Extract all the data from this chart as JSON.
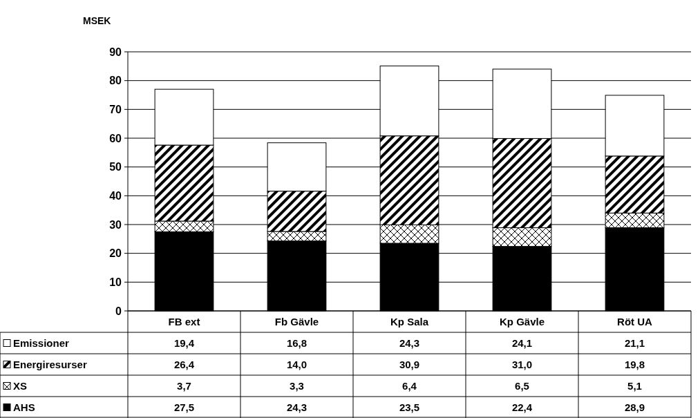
{
  "chart_data": {
    "type": "bar",
    "stacked": true,
    "ylabel": "MSEK",
    "categories": [
      "FB ext",
      "Fb Gävle",
      "Kp Sala",
      "Kp Gävle",
      "Röt UA"
    ],
    "series": [
      {
        "name": "AHS",
        "color": "#000000",
        "values": [
          27.5,
          24.3,
          23.5,
          22.4,
          28.9
        ],
        "value_labels": [
          "27,5",
          "24,3",
          "23,5",
          "22,4",
          "28,9"
        ]
      },
      {
        "name": "XS",
        "color": "#000000",
        "values": [
          3.7,
          3.3,
          6.4,
          6.5,
          5.1
        ],
        "value_labels": [
          "3,7",
          "3,3",
          "6,4",
          "6,5",
          "5,1"
        ]
      },
      {
        "name": "Energiresurser",
        "color": "#000000",
        "values": [
          26.4,
          14.0,
          30.9,
          31.0,
          19.8
        ],
        "value_labels": [
          "26,4",
          "14,0",
          "30,9",
          "31,0",
          "19,8"
        ]
      },
      {
        "name": "Emissioner",
        "color": "#ffffff",
        "values": [
          19.4,
          16.8,
          24.3,
          24.1,
          21.1
        ],
        "value_labels": [
          "19,4",
          "16,8",
          "24,3",
          "24,1",
          "21,1"
        ]
      }
    ],
    "ylim": [
      0,
      90
    ],
    "yticks": [
      0,
      10,
      20,
      30,
      40,
      50,
      60,
      70,
      80,
      90
    ],
    "grid": "y",
    "legend": "bottom"
  }
}
